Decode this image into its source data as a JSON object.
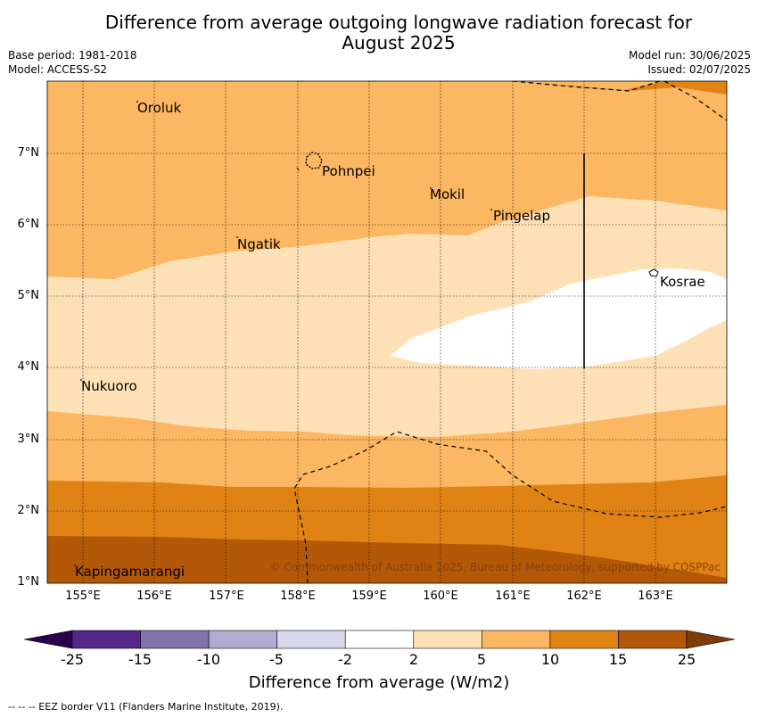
{
  "title_line1": "Difference from average outgoing longwave radiation forecast for",
  "title_line2": "August 2025",
  "base_period": "Base period: 1981-2018",
  "model": "Model: ACCESS-S2",
  "model_run": "Model run: 30/06/2025",
  "issued": "Issued: 02/07/2025",
  "map": {
    "lon_range": [
      154.5,
      164.0
    ],
    "lat_range": [
      1.0,
      8.0
    ],
    "x_ticks": [
      "155°E",
      "156°E",
      "157°E",
      "158°E",
      "159°E",
      "160°E",
      "161°E",
      "162°E",
      "163°E"
    ],
    "y_ticks": [
      "7°N",
      "6°N",
      "5°N",
      "4°N",
      "3°N",
      "2°N",
      "1°N"
    ],
    "places": [
      {
        "name": "Oroluk",
        "lon": 155.75,
        "lat": 7.7
      },
      {
        "name": "Pohnpei",
        "lon": 158.2,
        "lat": 6.9
      },
      {
        "name": "Mokil",
        "lon": 159.8,
        "lat": 6.5
      },
      {
        "name": "Pingelap",
        "lon": 160.7,
        "lat": 6.2
      },
      {
        "name": "Ngatik",
        "lon": 157.1,
        "lat": 5.8
      },
      {
        "name": "Kosrae",
        "lon": 163.0,
        "lat": 5.3
      },
      {
        "name": "Nukuoro",
        "lon": 154.95,
        "lat": 3.85
      },
      {
        "name": "Kapingamarangi",
        "lon": 154.85,
        "lat": 1.1
      }
    ],
    "copyright": "© Commonwealth of Australia 2025, Bureau of Meteorology, supported by COSPPac"
  },
  "colorbar": {
    "ticks": [
      "-25",
      "-15",
      "-10",
      "-5",
      "-2",
      "2",
      "5",
      "10",
      "15",
      "25"
    ],
    "colors": [
      "#542788",
      "#8073ac",
      "#b2abd2",
      "#d8daeb",
      "#ffffff",
      "#fee0b6",
      "#fbb761",
      "#e08214",
      "#b35806"
    ],
    "under_color": "#2d004b",
    "over_color": "#7f3b08",
    "label": "Difference from average (W/m2)"
  },
  "footnote": "--  --  -- EEZ border V11 (Flanders Marine Institute, 2019)."
}
